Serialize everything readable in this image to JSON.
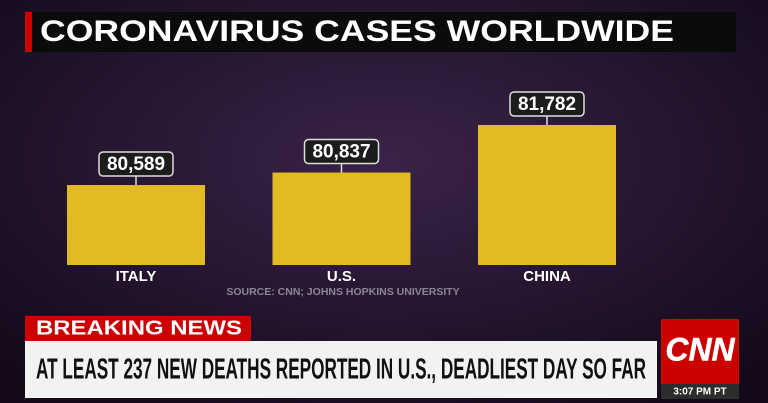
{
  "chart_data": {
    "type": "bar",
    "title": "CORONAVIRUS CASES WORLDWIDE",
    "source": "SOURCE: CNN; JOHNS HOPKINS UNIVERSITY",
    "categories": [
      "ITALY",
      "U.S.",
      "CHINA"
    ],
    "values": [
      80589,
      80837,
      81782
    ],
    "value_labels": [
      "80,589",
      "80,837",
      "81,782"
    ],
    "color": "#e2ba22",
    "ylim": [
      79000,
      82000
    ]
  },
  "ticker": {
    "label": "BREAKING NEWS",
    "headline": "AT LEAST 237 NEW DEATHS REPORTED IN U.S., DEADLIEST DAY SO FAR",
    "logo": "CNN",
    "time": "3:07 PM PT"
  }
}
